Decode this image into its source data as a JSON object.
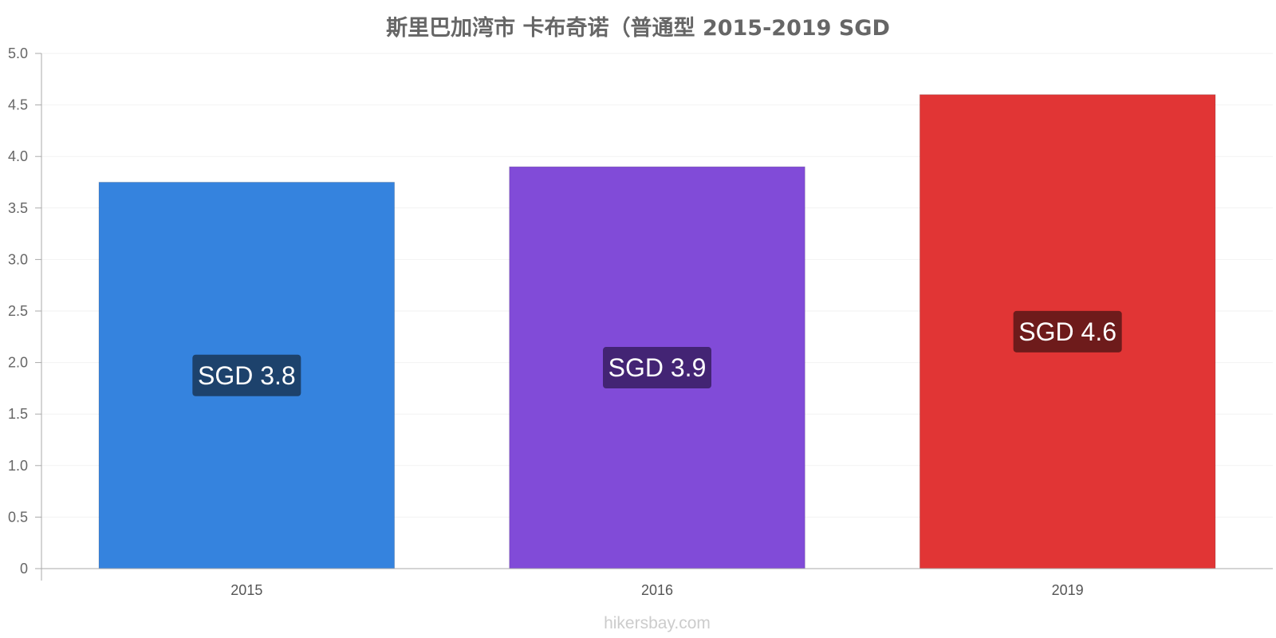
{
  "chart_data": {
    "type": "bar",
    "title": "斯里巴加湾市 卡布奇诺（普通型 2015-2019 SGD",
    "categories": [
      "2015",
      "2016",
      "2019"
    ],
    "values": [
      3.75,
      3.9,
      4.6
    ],
    "data_labels": [
      "SGD 3.8",
      "SGD 3.9",
      "SGD 4.6"
    ],
    "bar_colors": [
      "#3583de",
      "#814bd8",
      "#e13535"
    ],
    "label_colors": [
      "#1d426c",
      "#432474",
      "#6e1b1b"
    ],
    "ylim": [
      0,
      5
    ],
    "yticks": [
      "0",
      "0.5",
      "1.0",
      "1.5",
      "2.0",
      "2.5",
      "3.0",
      "3.5",
      "4.0",
      "4.5",
      "5.0"
    ],
    "grid": true,
    "legend": "none"
  },
  "source": "hikersbay.com"
}
